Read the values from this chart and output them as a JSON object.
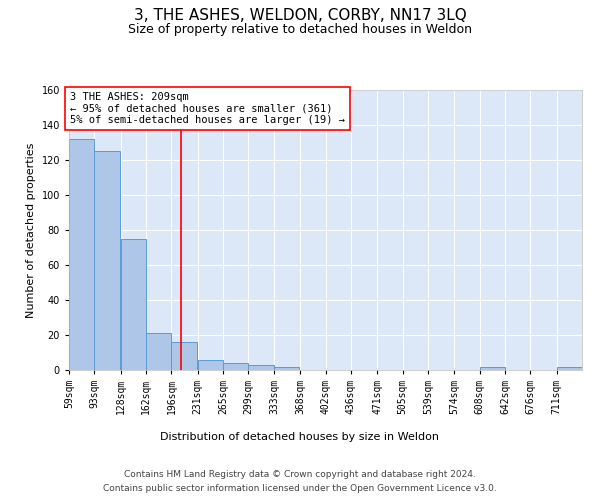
{
  "title": "3, THE ASHES, WELDON, CORBY, NN17 3LQ",
  "subtitle": "Size of property relative to detached houses in Weldon",
  "xlabel": "Distribution of detached houses by size in Weldon",
  "ylabel": "Number of detached properties",
  "bin_edges": [
    59,
    93,
    128,
    162,
    196,
    231,
    265,
    299,
    333,
    368,
    402,
    436,
    471,
    505,
    539,
    574,
    608,
    642,
    676,
    711,
    745
  ],
  "bar_heights": [
    132,
    125,
    75,
    21,
    16,
    6,
    4,
    3,
    2,
    0,
    0,
    0,
    0,
    0,
    0,
    0,
    2,
    0,
    0,
    2
  ],
  "bar_color": "#aec6e8",
  "bar_edge_color": "#5b9bd5",
  "background_color": "#dce8f8",
  "grid_color": "#ffffff",
  "red_line_x": 209,
  "ylim": [
    0,
    160
  ],
  "yticks": [
    0,
    20,
    40,
    60,
    80,
    100,
    120,
    140,
    160
  ],
  "annotation_text": "3 THE ASHES: 209sqm\n← 95% of detached houses are smaller (361)\n5% of semi-detached houses are larger (19) →",
  "footer_line1": "Contains HM Land Registry data © Crown copyright and database right 2024.",
  "footer_line2": "Contains public sector information licensed under the Open Government Licence v3.0.",
  "title_fontsize": 11,
  "subtitle_fontsize": 9,
  "axis_label_fontsize": 8,
  "tick_fontsize": 7,
  "annotation_fontsize": 7.5,
  "footer_fontsize": 6.5
}
